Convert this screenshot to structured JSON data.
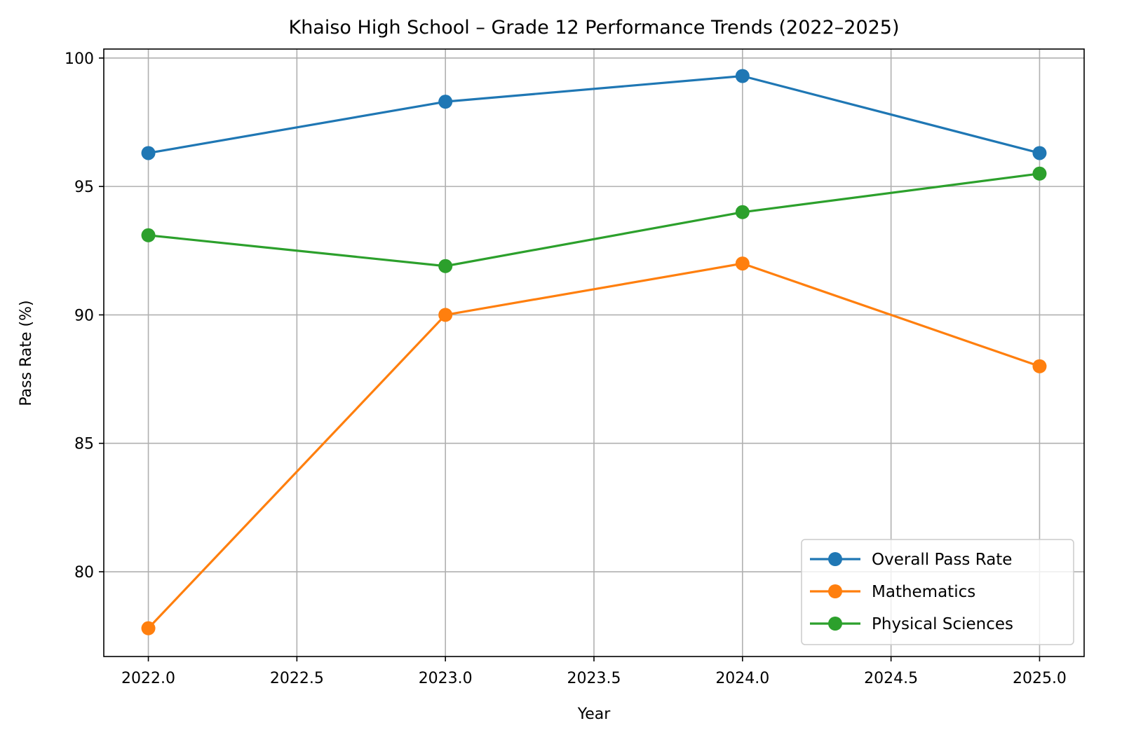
{
  "chart_data": {
    "type": "line",
    "title": "Khaiso High School – Grade 12 Performance Trends (2022–2025)",
    "xlabel": "Year",
    "ylabel": "Pass Rate (%)",
    "x": [
      2022,
      2023,
      2024,
      2025
    ],
    "xticks": [
      "2022.0",
      "2022.5",
      "2023.0",
      "2023.5",
      "2024.0",
      "2024.5",
      "2025.0"
    ],
    "xtick_values": [
      2022.0,
      2022.5,
      2023.0,
      2023.5,
      2024.0,
      2024.5,
      2025.0
    ],
    "yticks": [
      "80",
      "85",
      "90",
      "95",
      "100"
    ],
    "ytick_values": [
      80,
      85,
      90,
      95,
      100
    ],
    "xlim": [
      2021.85,
      2025.15
    ],
    "ylim": [
      76.7,
      100.35
    ],
    "grid": true,
    "legend_position": "lower right",
    "series": [
      {
        "name": "Overall Pass Rate",
        "color": "#1f77b4",
        "marker": "circle",
        "values": [
          96.3,
          98.3,
          99.3,
          96.3
        ]
      },
      {
        "name": "Mathematics",
        "color": "#ff7f0e",
        "marker": "circle",
        "values": [
          77.8,
          90.0,
          92.0,
          88.0
        ]
      },
      {
        "name": "Physical Sciences",
        "color": "#2ca02c",
        "marker": "circle",
        "values": [
          93.1,
          91.9,
          94.0,
          95.5
        ]
      }
    ]
  }
}
